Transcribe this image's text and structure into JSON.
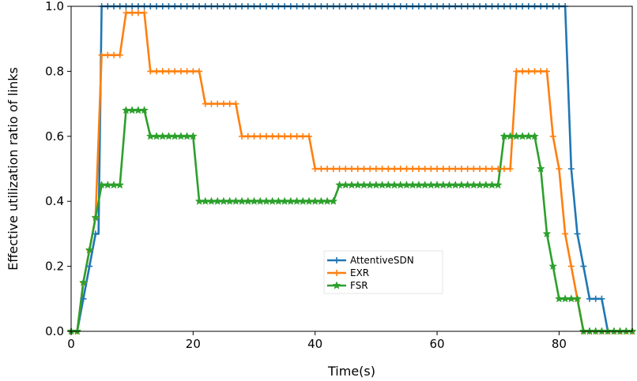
{
  "chart_data": {
    "type": "line",
    "title": "",
    "xlabel": "Time(s)",
    "ylabel": "Effective utilization ratio of links",
    "xlim": [
      0,
      92
    ],
    "ylim": [
      0,
      1.0
    ],
    "xticks": [
      0,
      20,
      40,
      60,
      80
    ],
    "yticks": [
      "0.0",
      "0.2",
      "0.4",
      "0.6",
      "0.8",
      "1.0"
    ],
    "grid": false,
    "legend_position": "center-bottom",
    "series": [
      {
        "name": "AttentiveSDN",
        "color": "#1f77b4",
        "marker": "plus",
        "x": [
          0,
          1,
          2,
          3,
          4,
          4.5,
          5,
          10,
          20,
          30,
          40,
          50,
          60,
          70,
          80,
          81,
          82,
          83,
          84,
          85,
          86,
          87,
          88,
          89,
          90,
          91,
          92
        ],
        "y": [
          0,
          0,
          0.1,
          0.2,
          0.3,
          0.3,
          1.0,
          1.0,
          1.0,
          1.0,
          1.0,
          1.0,
          1.0,
          1.0,
          1.0,
          1.0,
          0.5,
          0.3,
          0.2,
          0.1,
          0.1,
          0.1,
          0,
          0,
          0,
          0,
          0
        ]
      },
      {
        "name": "EXR",
        "color": "#ff7f0e",
        "marker": "plus",
        "x": [
          0,
          1,
          2,
          3,
          4,
          5,
          6,
          7,
          8,
          9,
          10,
          11,
          12,
          13,
          14,
          15,
          16,
          17,
          18,
          19,
          20,
          21,
          22,
          23,
          24,
          25,
          26,
          27,
          28,
          29,
          30,
          31,
          32,
          33,
          34,
          35,
          36,
          37,
          38,
          39,
          40,
          41,
          42,
          43,
          44,
          45,
          46,
          47,
          48,
          49,
          50,
          51,
          52,
          53,
          54,
          55,
          56,
          57,
          58,
          59,
          60,
          61,
          62,
          63,
          64,
          65,
          66,
          67,
          68,
          69,
          70,
          71,
          72,
          73,
          74,
          75,
          76,
          77,
          78,
          79,
          80,
          81,
          82,
          83,
          84,
          85,
          86,
          87,
          88,
          89,
          90,
          91,
          92
        ],
        "y": [
          0,
          0,
          0.15,
          0.25,
          0.35,
          0.85,
          0.85,
          0.85,
          0.85,
          0.98,
          0.98,
          0.98,
          0.98,
          0.8,
          0.8,
          0.8,
          0.8,
          0.8,
          0.8,
          0.8,
          0.8,
          0.8,
          0.7,
          0.7,
          0.7,
          0.7,
          0.7,
          0.7,
          0.6,
          0.6,
          0.6,
          0.6,
          0.6,
          0.6,
          0.6,
          0.6,
          0.6,
          0.6,
          0.6,
          0.6,
          0.5,
          0.5,
          0.5,
          0.5,
          0.5,
          0.5,
          0.5,
          0.5,
          0.5,
          0.5,
          0.5,
          0.5,
          0.5,
          0.5,
          0.5,
          0.5,
          0.5,
          0.5,
          0.5,
          0.5,
          0.5,
          0.5,
          0.5,
          0.5,
          0.5,
          0.5,
          0.5,
          0.5,
          0.5,
          0.5,
          0.5,
          0.5,
          0.5,
          0.8,
          0.8,
          0.8,
          0.8,
          0.8,
          0.8,
          0.6,
          0.5,
          0.3,
          0.2,
          0.1,
          0,
          0,
          0,
          0,
          0,
          0,
          0,
          0,
          0
        ]
      },
      {
        "name": "FSR",
        "color": "#2ca02c",
        "marker": "star",
        "x": [
          0,
          1,
          2,
          3,
          4,
          5,
          6,
          7,
          8,
          9,
          10,
          11,
          12,
          13,
          14,
          15,
          16,
          17,
          18,
          19,
          20,
          21,
          22,
          23,
          24,
          25,
          26,
          27,
          28,
          29,
          30,
          31,
          32,
          33,
          34,
          35,
          36,
          37,
          38,
          39,
          40,
          41,
          42,
          43,
          44,
          45,
          46,
          47,
          48,
          49,
          50,
          51,
          52,
          53,
          54,
          55,
          56,
          57,
          58,
          59,
          60,
          61,
          62,
          63,
          64,
          65,
          66,
          67,
          68,
          69,
          70,
          71,
          72,
          73,
          74,
          75,
          76,
          77,
          78,
          79,
          80,
          81,
          82,
          83,
          84,
          85,
          86,
          87,
          88,
          89,
          90,
          91,
          92
        ],
        "y": [
          0,
          0,
          0.15,
          0.25,
          0.35,
          0.45,
          0.45,
          0.45,
          0.45,
          0.68,
          0.68,
          0.68,
          0.68,
          0.6,
          0.6,
          0.6,
          0.6,
          0.6,
          0.6,
          0.6,
          0.6,
          0.4,
          0.4,
          0.4,
          0.4,
          0.4,
          0.4,
          0.4,
          0.4,
          0.4,
          0.4,
          0.4,
          0.4,
          0.4,
          0.4,
          0.4,
          0.4,
          0.4,
          0.4,
          0.4,
          0.4,
          0.4,
          0.4,
          0.4,
          0.45,
          0.45,
          0.45,
          0.45,
          0.45,
          0.45,
          0.45,
          0.45,
          0.45,
          0.45,
          0.45,
          0.45,
          0.45,
          0.45,
          0.45,
          0.45,
          0.45,
          0.45,
          0.45,
          0.45,
          0.45,
          0.45,
          0.45,
          0.45,
          0.45,
          0.45,
          0.45,
          0.6,
          0.6,
          0.6,
          0.6,
          0.6,
          0.6,
          0.5,
          0.3,
          0.2,
          0.1,
          0.1,
          0.1,
          0.1,
          0,
          0,
          0,
          0,
          0,
          0,
          0,
          0,
          0
        ]
      }
    ]
  }
}
